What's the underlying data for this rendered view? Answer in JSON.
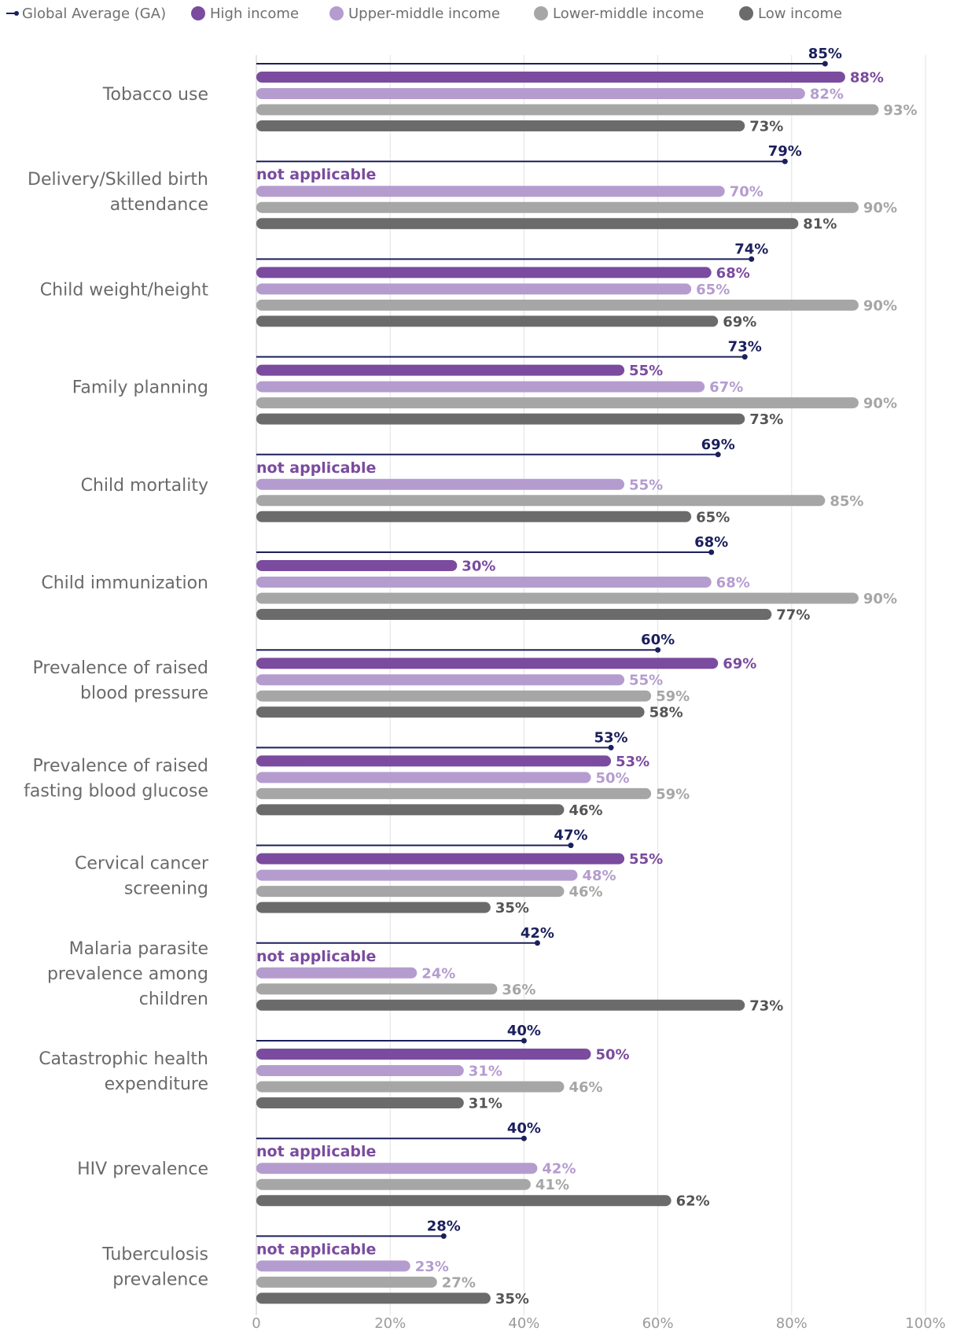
{
  "chart_data": {
    "type": "bar",
    "orientation": "horizontal",
    "xlim": [
      0,
      100
    ],
    "x_ticks": [
      "0",
      "20%",
      "40%",
      "60%",
      "80%",
      "100%"
    ],
    "grid": true,
    "legend_position": "top",
    "not_applicable_text": "not applicable",
    "value_suffix": "%",
    "categories": [
      [
        "Tobacco use"
      ],
      [
        "Delivery/Skilled birth",
        "attendance"
      ],
      [
        "Child weight/height"
      ],
      [
        "Family planning"
      ],
      [
        "Child mortality"
      ],
      [
        "Child immunization"
      ],
      [
        "Prevalence of raised",
        "blood pressure"
      ],
      [
        "Prevalence of raised",
        "fasting blood glucose"
      ],
      [
        "Cervical cancer",
        "screening"
      ],
      [
        "Malaria parasite",
        "prevalence among",
        "children"
      ],
      [
        "Catastrophic health",
        "expenditure"
      ],
      [
        "HIV prevalence"
      ],
      [
        "Tuberculosis",
        "prevalence"
      ]
    ],
    "series": [
      {
        "name": "Global Average (GA)",
        "kind": "line",
        "color": "#1b1f5c",
        "label_color": "#1b1f5c",
        "values": [
          85,
          79,
          74,
          73,
          69,
          68,
          60,
          53,
          47,
          42,
          40,
          40,
          28
        ]
      },
      {
        "name": "High income",
        "kind": "bar",
        "color": "#7a4b9e",
        "label_color": "#7a4b9e",
        "values": [
          88,
          null,
          68,
          55,
          null,
          30,
          69,
          53,
          55,
          null,
          50,
          null,
          null
        ]
      },
      {
        "name": "Upper-middle income",
        "kind": "bar",
        "color": "#b59ccf",
        "label_color": "#b59ccf",
        "values": [
          82,
          70,
          65,
          67,
          55,
          68,
          55,
          50,
          48,
          24,
          31,
          42,
          23
        ]
      },
      {
        "name": "Lower-middle income",
        "kind": "bar",
        "color": "#a6a6a6",
        "label_color": "#a6a6a6",
        "values": [
          93,
          90,
          90,
          90,
          85,
          90,
          59,
          59,
          46,
          36,
          46,
          41,
          27
        ]
      },
      {
        "name": "Low income",
        "kind": "bar",
        "color": "#6b6b6b",
        "label_color": "#555555",
        "values": [
          73,
          81,
          69,
          73,
          65,
          77,
          58,
          46,
          35,
          73,
          31,
          62,
          35
        ]
      }
    ]
  }
}
